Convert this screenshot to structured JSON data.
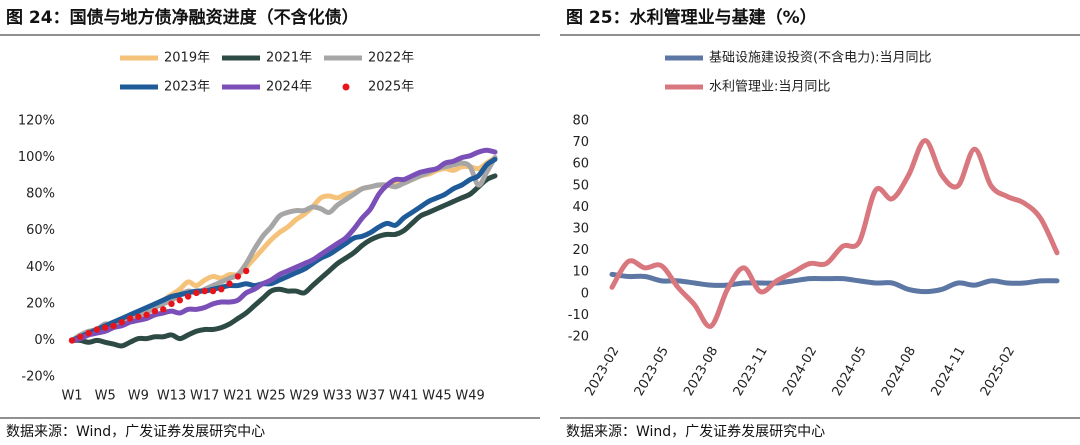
{
  "chart_data": [
    {
      "type": "line",
      "title": "图 24：国债与地方债净融资进度（不含化债）",
      "source": "数据来源：Wind，广发证券发展研究中心",
      "categories": [
        "W1",
        null,
        null,
        null,
        "W5",
        null,
        null,
        null,
        "W9",
        null,
        null,
        null,
        "W13",
        null,
        null,
        null,
        "W17",
        null,
        null,
        null,
        "W21",
        null,
        null,
        null,
        "W25",
        null,
        null,
        null,
        "W29",
        null,
        null,
        null,
        "W33",
        null,
        null,
        null,
        "W37",
        null,
        null,
        null,
        "W41",
        null,
        null,
        null,
        "W45",
        null,
        null,
        null,
        "W49",
        null,
        null,
        null
      ],
      "ylim": [
        -20,
        120
      ],
      "yticks": [
        {
          "value": -20,
          "label": "-20%"
        },
        {
          "value": 0,
          "label": "0%"
        },
        {
          "value": 20,
          "label": "20%"
        },
        {
          "value": 40,
          "label": "40%"
        },
        {
          "value": 60,
          "label": "60%"
        },
        {
          "value": 80,
          "label": "80%"
        },
        {
          "value": 100,
          "label": "100%"
        },
        {
          "value": 120,
          "label": "120%"
        }
      ],
      "grid": false,
      "legend": "top",
      "series": [
        {
          "name": "2019年",
          "color": "#f5c27a",
          "values": [
            0,
            2,
            4,
            6,
            8,
            10,
            11,
            13,
            15,
            17,
            20,
            22,
            25,
            28,
            32,
            30,
            33,
            35,
            34,
            36,
            36,
            40,
            45,
            50,
            55,
            59,
            62,
            66,
            69,
            73,
            78,
            79,
            78,
            80,
            81,
            83,
            84,
            85,
            85,
            86,
            86,
            88,
            90,
            91,
            93,
            94,
            93,
            95,
            95,
            94,
            97,
            100
          ]
        },
        {
          "name": "2021年",
          "color": "#2e4a44",
          "values": [
            0,
            0,
            -1,
            0,
            -1,
            -2,
            -3,
            -1,
            1,
            1,
            2,
            2,
            3,
            1,
            3,
            5,
            6,
            6,
            7,
            9,
            12,
            15,
            19,
            23,
            27,
            28,
            27,
            27,
            26,
            30,
            34,
            38,
            42,
            45,
            48,
            52,
            55,
            57,
            58,
            58,
            60,
            64,
            68,
            70,
            72,
            74,
            76,
            78,
            80,
            84,
            88,
            90
          ]
        },
        {
          "name": "2022年",
          "color": "#a6a6a6",
          "values": [
            0,
            3,
            5,
            6,
            9,
            8,
            10,
            12,
            13,
            15,
            18,
            20,
            22,
            25,
            27,
            26,
            28,
            30,
            32,
            34,
            36,
            42,
            50,
            57,
            62,
            68,
            70,
            71,
            71,
            73,
            72,
            70,
            74,
            77,
            80,
            83,
            84,
            85,
            85,
            84,
            86,
            88,
            90,
            92,
            94,
            95,
            96,
            97,
            95,
            85,
            92,
            100
          ]
        },
        {
          "name": "2023年",
          "color": "#1f5b98",
          "values": [
            0,
            2,
            4,
            6,
            8,
            10,
            12,
            14,
            16,
            18,
            20,
            22,
            24,
            25,
            26,
            27,
            27,
            28,
            29,
            30,
            30,
            31,
            30,
            31,
            31,
            33,
            35,
            37,
            39,
            42,
            45,
            47,
            50,
            53,
            56,
            57,
            59,
            62,
            64,
            63,
            67,
            70,
            73,
            76,
            78,
            80,
            83,
            85,
            88,
            90,
            96,
            99
          ]
        },
        {
          "name": "2024年",
          "color": "#7b4fb8",
          "values": [
            0,
            1,
            3,
            4,
            5,
            7,
            8,
            10,
            11,
            12,
            14,
            15,
            16,
            15,
            17,
            17,
            18,
            20,
            21,
            21,
            22,
            26,
            28,
            31,
            33,
            36,
            38,
            40,
            42,
            44,
            47,
            50,
            53,
            56,
            61,
            67,
            72,
            80,
            85,
            88,
            88,
            90,
            92,
            93,
            94,
            97,
            98,
            100,
            101,
            103,
            104,
            103
          ]
        },
        {
          "name": "2025年",
          "color": "#e8141b",
          "marker": "dot",
          "values": [
            0,
            2,
            4,
            6,
            7,
            8,
            10,
            12,
            13,
            14,
            16,
            17,
            20,
            22,
            24,
            26,
            27,
            27,
            28,
            31,
            35,
            38,
            null,
            null,
            null,
            null,
            null,
            null,
            null,
            null,
            null,
            null,
            null,
            null,
            null,
            null,
            null,
            null,
            null,
            null,
            null,
            null,
            null,
            null,
            null,
            null,
            null,
            null,
            null,
            null,
            null,
            null
          ]
        }
      ]
    },
    {
      "type": "line",
      "title": "图 25：水利管理业与基建（%）",
      "source": "数据来源：Wind，广发证券发展研究中心",
      "categories": [
        "2023-02",
        null,
        null,
        "2023-05",
        null,
        null,
        "2023-08",
        null,
        null,
        "2023-11",
        null,
        null,
        "2024-02",
        null,
        null,
        "2024-05",
        null,
        null,
        "2024-08",
        null,
        null,
        "2024-11",
        null,
        null,
        "2025-02",
        null,
        null,
        null
      ],
      "ylim": [
        -20,
        80
      ],
      "yticks": [
        -20,
        -10,
        0,
        10,
        20,
        30,
        40,
        50,
        60,
        70,
        80
      ],
      "grid": false,
      "legend": "upper left",
      "series": [
        {
          "name": "基础设施建设投资(不含电力):当月同比",
          "color": "#5c77a3",
          "values": [
            9,
            8,
            8,
            6,
            6,
            5,
            4,
            4,
            5,
            5,
            5,
            6,
            7,
            7,
            7,
            6,
            5,
            5,
            2,
            1,
            2,
            5,
            4,
            6,
            5,
            5,
            6,
            6
          ]
        },
        {
          "name": "水利管理业:当月同比",
          "color": "#d9777f",
          "values": [
            3,
            15,
            12,
            13,
            3,
            -5,
            -15,
            2,
            12,
            1,
            6,
            10,
            14,
            14,
            22,
            24,
            48,
            44,
            55,
            71,
            55,
            50,
            67,
            50,
            45,
            42,
            35,
            19
          ]
        }
      ]
    }
  ]
}
